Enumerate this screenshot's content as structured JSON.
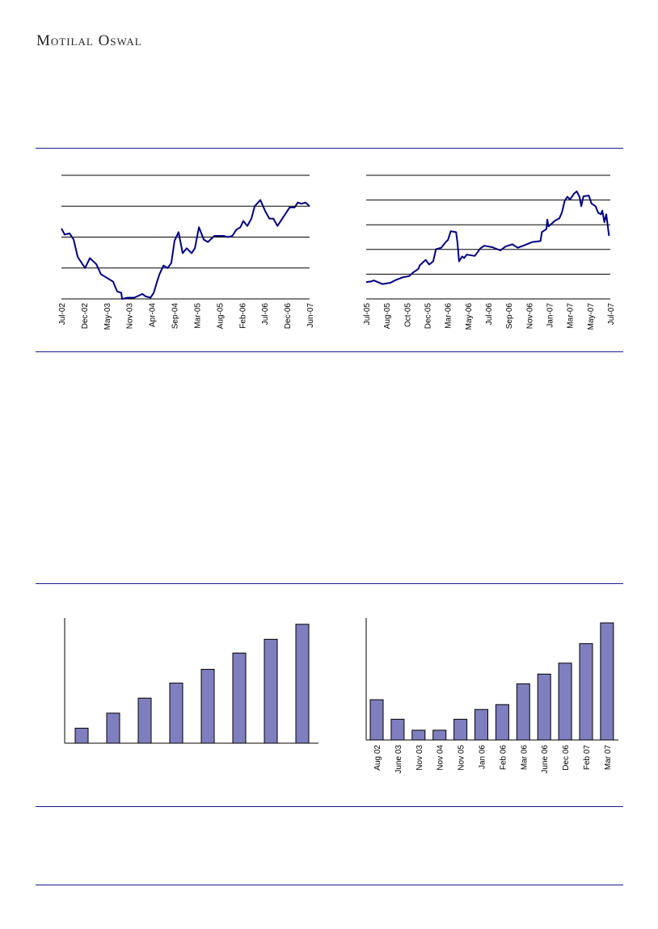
{
  "header": {
    "logo": "Motilal Oswal"
  },
  "colors": {
    "rule": "#1a1a8c",
    "line": "#00007f",
    "bar": "#7f7fbf"
  },
  "chart_data": [
    {
      "type": "line",
      "title": "",
      "xlabel": "",
      "ylabel": "",
      "ylim": [
        0,
        100
      ],
      "xlim": [
        0,
        61
      ],
      "grid": true,
      "tick_labels": [
        "Jul-02",
        "Dec-02",
        "May-03",
        "Nov-03",
        "Apr-04",
        "Sep-04",
        "Mar-05",
        "Aug-05",
        "Feb-06",
        "Jul-06",
        "Dec-06",
        "Jun-07"
      ],
      "x": [
        0,
        0.8,
        2,
        3,
        4,
        5.8,
        7,
        8.6,
        9.7,
        12.7,
        13.7,
        14.7,
        14.9,
        16.3,
        17.9,
        19.9,
        20.7,
        21.9,
        22.7,
        23.5,
        24.1,
        25.1,
        26.1,
        27,
        27.8,
        28.8,
        29.8,
        30.8,
        32,
        32.8,
        33.8,
        35,
        36,
        37.6,
        39.8,
        41,
        42,
        43,
        44,
        44.7,
        45.7,
        46.7,
        47.5,
        48.9,
        50.1,
        51.1,
        52.1,
        53.1,
        55.5,
        56.1,
        57.3,
        58.1,
        59,
        60,
        61
      ],
      "y": [
        57,
        52,
        53,
        48,
        34,
        25,
        33,
        28,
        20,
        14,
        6,
        5,
        0,
        1,
        1,
        4,
        2,
        1,
        5,
        14,
        20,
        27,
        25,
        29,
        47,
        54,
        37,
        41,
        37,
        41,
        58,
        48,
        46,
        51,
        51,
        50,
        51,
        56,
        58,
        63,
        59,
        65,
        75,
        80,
        71,
        65,
        65,
        59,
        71,
        74,
        74,
        78,
        77,
        78,
        75
      ]
    },
    {
      "type": "line",
      "title": "",
      "xlabel": "",
      "ylabel": "",
      "ylim": [
        0,
        5
      ],
      "xlim": [
        0,
        24
      ],
      "grid": true,
      "tick_labels": [
        "Jul-05",
        "Aug-05",
        "Oct-05",
        "Dec-05",
        "Mar-06",
        "May-06",
        "Jul-06",
        "Sep-06",
        "Nov-06",
        "Jan-07",
        "Mar-07",
        "May-07",
        "Jul-07"
      ],
      "x": [
        0,
        0.53,
        0.74,
        1.58,
        2.37,
        2.9,
        3.56,
        4.22,
        4.62,
        5.14,
        5.27,
        5.85,
        6.2,
        6.59,
        6.86,
        7.38,
        7.78,
        8.04,
        8.31,
        8.84,
        8.97,
        9.13,
        9.44,
        9.63,
        9.89,
        10.68,
        11.21,
        11.6,
        12.4,
        13.19,
        13.71,
        14.37,
        14.9,
        15.43,
        16.35,
        17.14,
        17.27,
        17.72,
        17.8,
        17.93,
        18.59,
        18.99,
        19.25,
        19.52,
        19.78,
        20.04,
        20.44,
        20.7,
        20.97,
        21.15,
        21.36,
        21.89,
        22.15,
        22.55,
        22.81,
        23.08,
        23.21,
        23.42,
        23.6,
        23.74,
        23.87
      ],
      "y": [
        0.68,
        0.71,
        0.75,
        0.6,
        0.65,
        0.76,
        0.87,
        0.92,
        1.07,
        1.22,
        1.36,
        1.58,
        1.39,
        1.52,
        2.01,
        2.07,
        2.28,
        2.39,
        2.74,
        2.7,
        2.28,
        1.52,
        1.72,
        1.65,
        1.79,
        1.74,
        2.04,
        2.15,
        2.09,
        1.96,
        2.12,
        2.21,
        2.07,
        2.15,
        2.3,
        2.34,
        2.7,
        2.83,
        3.21,
        2.93,
        3.17,
        3.26,
        3.5,
        3.97,
        4.13,
        4.02,
        4.26,
        4.35,
        4.13,
        3.75,
        4.15,
        4.18,
        3.86,
        3.75,
        3.48,
        3.42,
        3.57,
        3.1,
        3.42,
        2.99,
        2.55
      ]
    },
    {
      "type": "bar",
      "title": "",
      "xlabel": "",
      "ylabel": "",
      "ylim": [
        0,
        100
      ],
      "categories": [
        "",
        "",
        "",
        "",
        "",
        "",
        "",
        ""
      ],
      "values": [
        12,
        24,
        36,
        48,
        59,
        72,
        83,
        95
      ]
    },
    {
      "type": "bar",
      "title": "",
      "xlabel": "",
      "ylabel": "",
      "ylim": [
        0,
        100
      ],
      "categories": [
        "Aug 02",
        "June 03",
        "Nov 03",
        "Nov 04",
        "Nov 05",
        "Jan 06",
        "Feb 06",
        "Mar 06",
        "June 06",
        "Dec 06",
        "Feb 07",
        "Mar 07"
      ],
      "values": [
        33,
        17,
        8,
        8,
        17,
        25,
        29,
        46,
        54,
        63,
        79,
        96
      ]
    }
  ]
}
